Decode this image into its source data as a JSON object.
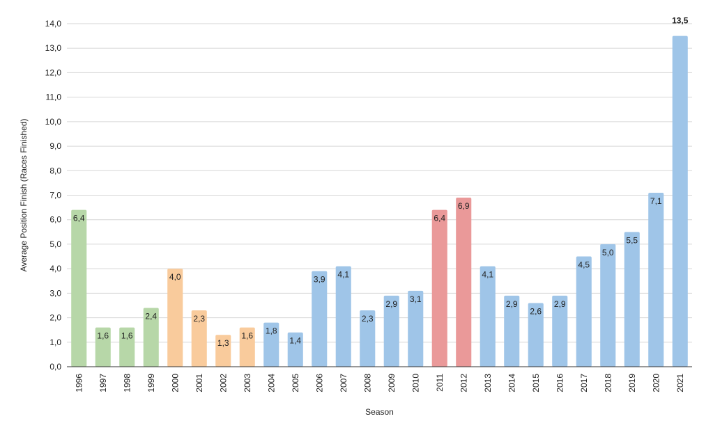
{
  "chart_data": {
    "type": "bar",
    "xlabel": "Season",
    "ylabel": "Average Position Finish (Races Finished)",
    "ylim": [
      0,
      14
    ],
    "yticks": [
      "0,0",
      "1,0",
      "2,0",
      "3,0",
      "4,0",
      "5,0",
      "6,0",
      "7,0",
      "8,0",
      "9,0",
      "10,0",
      "11,0",
      "12,0",
      "13,0",
      "14,0"
    ],
    "grid": true,
    "categories": [
      "1996",
      "1997",
      "1998",
      "1999",
      "2000",
      "2001",
      "2002",
      "2003",
      "2004",
      "2005",
      "2006",
      "2007",
      "2008",
      "2009",
      "2010",
      "2011",
      "2012",
      "2013",
      "2014",
      "2015",
      "2016",
      "2017",
      "2018",
      "2019",
      "2020",
      "2021"
    ],
    "values": [
      6.4,
      1.6,
      1.6,
      2.4,
      4.0,
      2.3,
      1.3,
      1.6,
      1.8,
      1.4,
      3.9,
      4.1,
      2.3,
      2.9,
      3.1,
      6.4,
      6.9,
      4.1,
      2.9,
      2.6,
      2.9,
      4.5,
      5.0,
      5.5,
      7.1,
      13.5
    ],
    "labels": [
      "6,4",
      "1,6",
      "1,6",
      "2,4",
      "4,0",
      "2,3",
      "1,3",
      "1,6",
      "1,8",
      "1,4",
      "3,9",
      "4,1",
      "2,3",
      "2,9",
      "3,1",
      "6,4",
      "6,9",
      "4,1",
      "2,9",
      "2,6",
      "2,9",
      "4,5",
      "5,0",
      "5,5",
      "7,1",
      "13,5"
    ],
    "colors": [
      "#b7d7a8",
      "#b7d7a8",
      "#b7d7a8",
      "#b7d7a8",
      "#f9cb9c",
      "#f9cb9c",
      "#f9cb9c",
      "#f9cb9c",
      "#9fc5e8",
      "#9fc5e8",
      "#9fc5e8",
      "#9fc5e8",
      "#9fc5e8",
      "#9fc5e8",
      "#9fc5e8",
      "#ea9999",
      "#ea9999",
      "#9fc5e8",
      "#9fc5e8",
      "#9fc5e8",
      "#9fc5e8",
      "#9fc5e8",
      "#9fc5e8",
      "#9fc5e8",
      "#9fc5e8",
      "#9fc5e8"
    ],
    "label_color_default": "#222222",
    "label_color_outside": "#9fc5e8"
  }
}
